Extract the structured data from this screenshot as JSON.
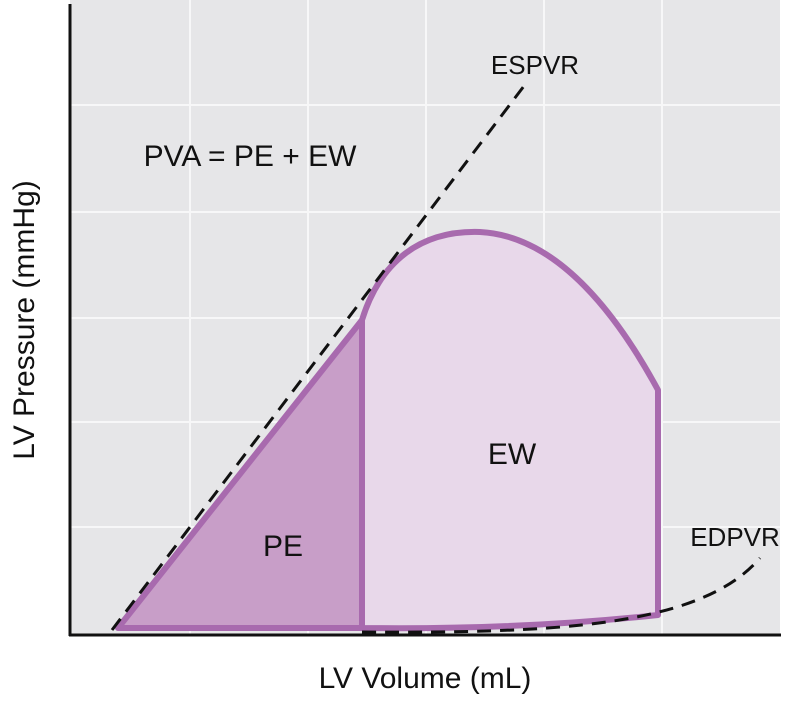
{
  "diagram": {
    "curves": {
      "espvr": "ESPVR",
      "edpvr": "EDPVR"
    },
    "formula": "PVA = PE + EW",
    "regions": {
      "pe": "PE",
      "ew": "EW"
    },
    "axes": {
      "x_label": "LV Volume (mL)",
      "y_label": "LV Pressure (mmHg)"
    }
  }
}
